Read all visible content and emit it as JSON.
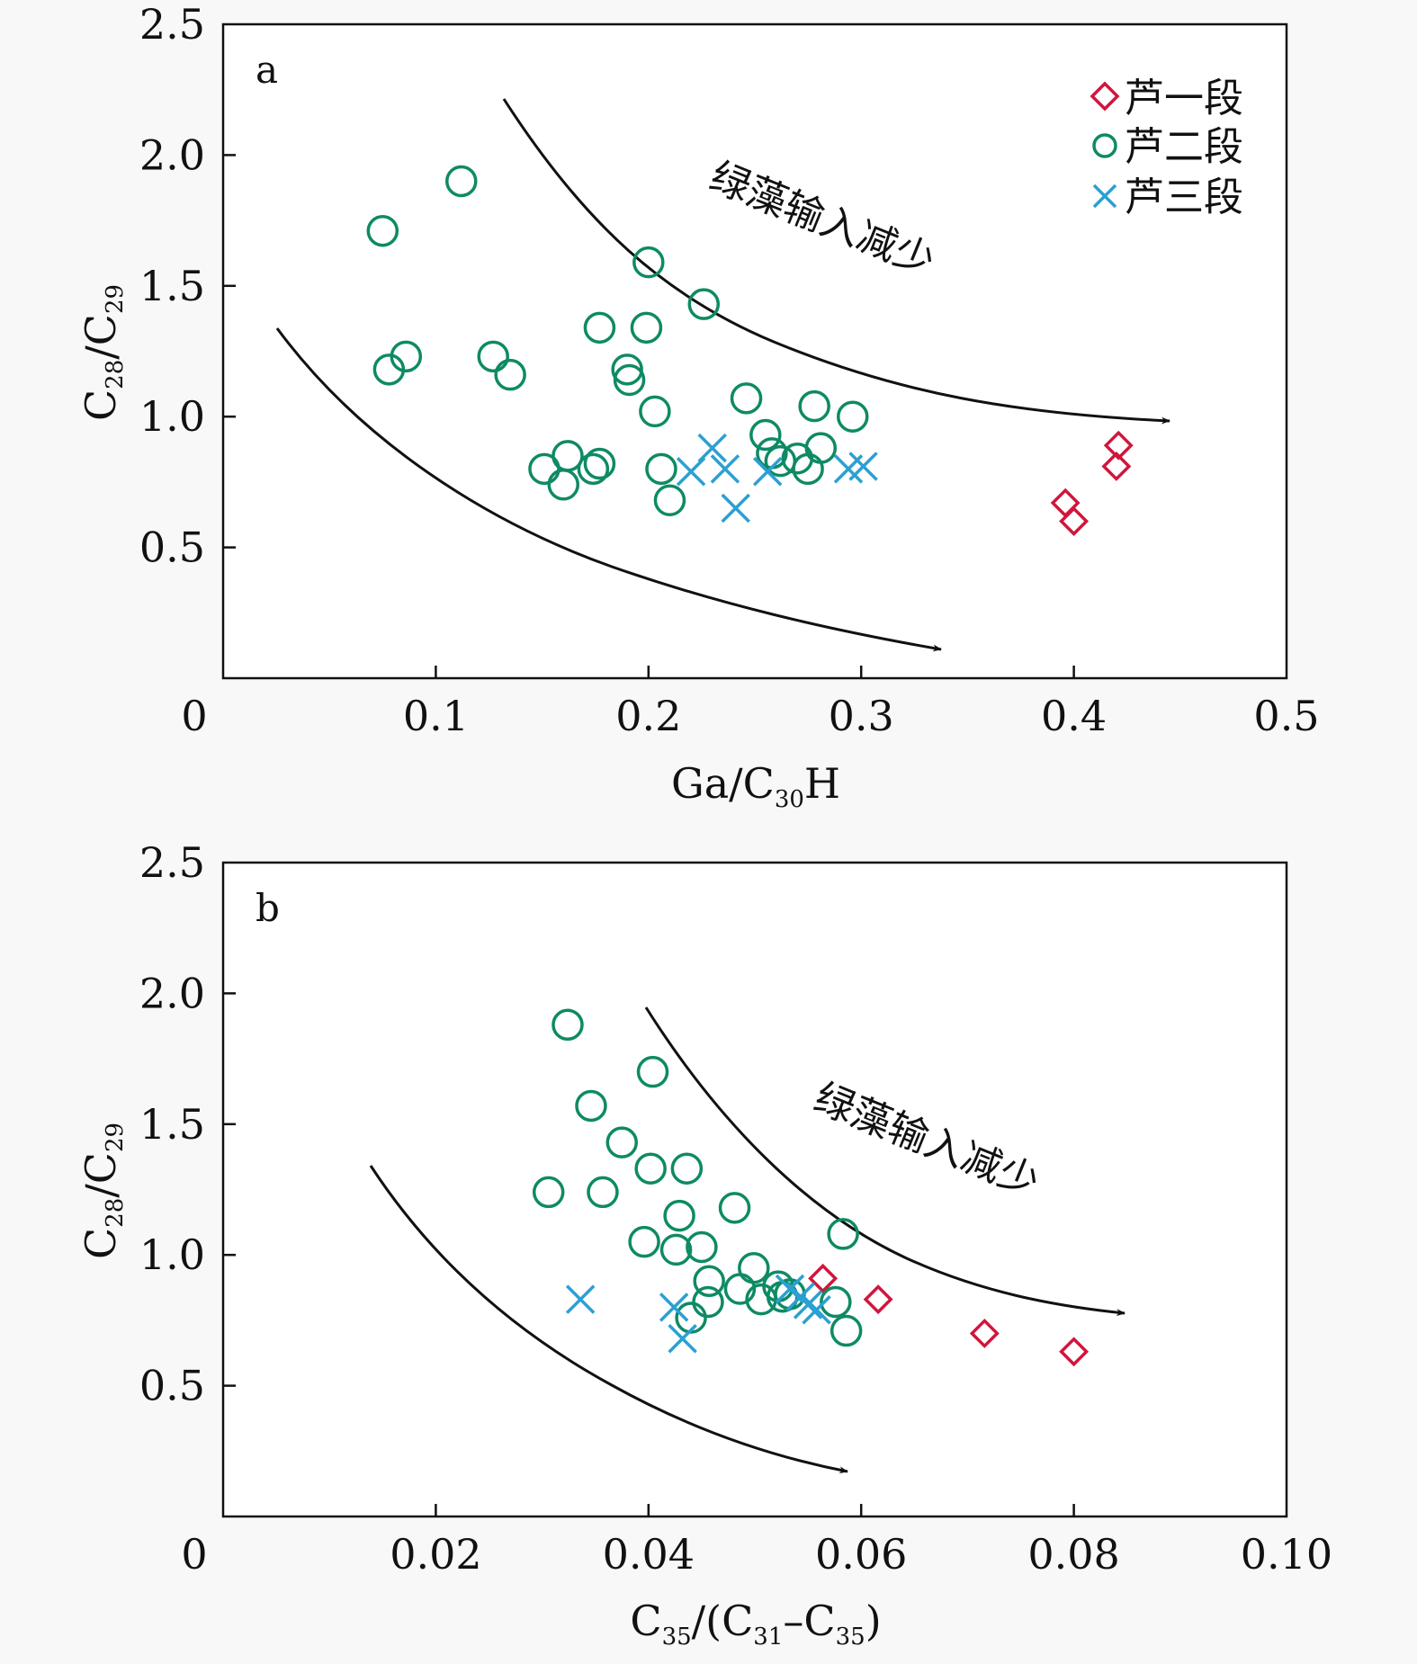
{
  "legend": {
    "items": [
      {
        "name": "芦一段",
        "marker": "diamond",
        "color": "#d0163c"
      },
      {
        "name": "芦二段",
        "marker": "circle",
        "color": "#0e8a64"
      },
      {
        "name": "芦三段",
        "marker": "cross",
        "color": "#2ba0d2"
      }
    ]
  },
  "colors": {
    "lu1": "#d0163c",
    "lu2": "#0e8a64",
    "lu3": "#2ba0d2",
    "axis": "#111111",
    "background": "#f8f8f8"
  },
  "chart_data": [
    {
      "type": "scatter",
      "panel_label": "a",
      "xlabel": {
        "base": "Ga/C",
        "sub": "30",
        "tail": "H"
      },
      "ylabel": {
        "c1": "C",
        "s1": "28",
        "mid": "/C",
        "s2": "29"
      },
      "xlim": [
        0,
        0.5
      ],
      "ylim": [
        0,
        2.5
      ],
      "x_ticks": [
        0,
        0.1,
        0.2,
        0.3,
        0.4,
        0.5
      ],
      "x_tick_labels": [
        "0",
        "0.1",
        "0.2",
        "0.3",
        "0.4",
        "0.5"
      ],
      "y_ticks": [
        0.5,
        1.0,
        1.5,
        2.0,
        2.5
      ],
      "y_tick_labels": [
        "0.5",
        "1.0",
        "1.5",
        "2.0",
        "2.5"
      ],
      "annotation": "绿藻输入减少",
      "legend_position": "top-right",
      "series": [
        {
          "name": "芦一段",
          "marker": "diamond",
          "points": [
            [
              0.396,
              0.67
            ],
            [
              0.4,
              0.6
            ],
            [
              0.421,
              0.89
            ],
            [
              0.42,
              0.81
            ]
          ]
        },
        {
          "name": "芦二段",
          "marker": "circle",
          "points": [
            [
              0.075,
              1.71
            ],
            [
              0.112,
              1.9
            ],
            [
              0.078,
              1.18
            ],
            [
              0.086,
              1.23
            ],
            [
              0.127,
              1.23
            ],
            [
              0.135,
              1.16
            ],
            [
              0.177,
              1.34
            ],
            [
              0.199,
              1.34
            ],
            [
              0.2,
              1.59
            ],
            [
              0.226,
              1.43
            ],
            [
              0.19,
              1.18
            ],
            [
              0.191,
              1.14
            ],
            [
              0.203,
              1.02
            ],
            [
              0.246,
              1.07
            ],
            [
              0.278,
              1.04
            ],
            [
              0.296,
              1.0
            ],
            [
              0.151,
              0.8
            ],
            [
              0.162,
              0.85
            ],
            [
              0.16,
              0.74
            ],
            [
              0.174,
              0.8
            ],
            [
              0.177,
              0.82
            ],
            [
              0.206,
              0.8
            ],
            [
              0.21,
              0.68
            ],
            [
              0.255,
              0.93
            ],
            [
              0.258,
              0.86
            ],
            [
              0.262,
              0.83
            ],
            [
              0.27,
              0.84
            ],
            [
              0.275,
              0.8
            ],
            [
              0.281,
              0.88
            ]
          ]
        },
        {
          "name": "芦三段",
          "marker": "cross",
          "points": [
            [
              0.22,
              0.79
            ],
            [
              0.23,
              0.88
            ],
            [
              0.236,
              0.8
            ],
            [
              0.241,
              0.65
            ],
            [
              0.256,
              0.79
            ],
            [
              0.294,
              0.8
            ],
            [
              0.301,
              0.81
            ]
          ]
        }
      ]
    },
    {
      "type": "scatter",
      "panel_label": "b",
      "xlabel": {
        "c1": "C",
        "s1": "35",
        "mid": "/(C",
        "s2": "31",
        "dash": "–C",
        "s3": "35",
        "tail": ")"
      },
      "ylabel": {
        "c1": "C",
        "s1": "28",
        "mid": "/C",
        "s2": "29"
      },
      "xlim": [
        0,
        0.1
      ],
      "ylim": [
        0,
        2.5
      ],
      "x_ticks": [
        0,
        0.02,
        0.04,
        0.06,
        0.08,
        0.1
      ],
      "x_tick_labels": [
        "0",
        "0.02",
        "0.04",
        "0.06",
        "0.08",
        "0.10"
      ],
      "y_ticks": [
        0.5,
        1.0,
        1.5,
        2.0,
        2.5
      ],
      "y_tick_labels": [
        "0.5",
        "1.0",
        "1.5",
        "2.0",
        "2.5"
      ],
      "annotation": "绿藻输入减少",
      "series": [
        {
          "name": "芦一段",
          "marker": "diamond",
          "points": [
            [
              0.0564,
              0.91
            ],
            [
              0.0616,
              0.83
            ],
            [
              0.0716,
              0.7
            ],
            [
              0.08,
              0.63
            ]
          ]
        },
        {
          "name": "芦二段",
          "marker": "circle",
          "points": [
            [
              0.0324,
              1.88
            ],
            [
              0.0404,
              1.7
            ],
            [
              0.0346,
              1.57
            ],
            [
              0.0375,
              1.43
            ],
            [
              0.0402,
              1.33
            ],
            [
              0.0436,
              1.33
            ],
            [
              0.0306,
              1.24
            ],
            [
              0.0357,
              1.24
            ],
            [
              0.0429,
              1.15
            ],
            [
              0.0481,
              1.18
            ],
            [
              0.0583,
              1.08
            ],
            [
              0.0396,
              1.05
            ],
            [
              0.0426,
              1.02
            ],
            [
              0.045,
              1.03
            ],
            [
              0.0457,
              0.9
            ],
            [
              0.0499,
              0.95
            ],
            [
              0.0486,
              0.87
            ],
            [
              0.0506,
              0.83
            ],
            [
              0.0522,
              0.88
            ],
            [
              0.0533,
              0.85
            ],
            [
              0.0526,
              0.84
            ],
            [
              0.0576,
              0.82
            ],
            [
              0.0586,
              0.71
            ],
            [
              0.0456,
              0.82
            ],
            [
              0.044,
              0.76
            ]
          ]
        },
        {
          "name": "芦三段",
          "marker": "cross",
          "points": [
            [
              0.0336,
              0.83
            ],
            [
              0.0424,
              0.8
            ],
            [
              0.0432,
              0.68
            ],
            [
              0.0533,
              0.87
            ],
            [
              0.0543,
              0.84
            ],
            [
              0.055,
              0.81
            ],
            [
              0.0558,
              0.79
            ]
          ]
        }
      ]
    }
  ]
}
